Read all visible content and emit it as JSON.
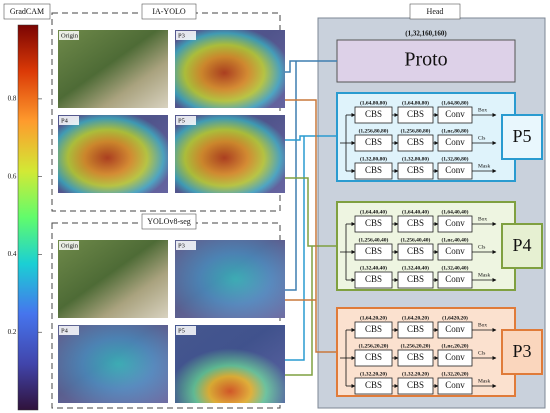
{
  "colorbar": {
    "title": "GradCAM",
    "lim": [
      0,
      0.99
    ],
    "ticks": [
      0.2,
      0.4,
      0.6,
      0.8
    ]
  },
  "panels": [
    {
      "title": "IA-YOLO",
      "images": [
        "Origin",
        "P3",
        "P4",
        "P5"
      ]
    },
    {
      "title": "YOLOv8-seg",
      "images": [
        "Origin",
        "P3",
        "P4",
        "P5"
      ]
    }
  ],
  "head": {
    "title": "Head",
    "proto": {
      "shape": "(1,32,160,160)",
      "label": "Proto"
    },
    "groups": [
      {
        "label": "P5",
        "rows": [
          {
            "shapes": [
              "(1,64,80,80)",
              "(1,64,80,80)",
              "(1,64,80,80)"
            ],
            "blocks": [
              "CBS",
              "CBS",
              "Conv"
            ],
            "output": "Box"
          },
          {
            "shapes": [
              "(1,256,80,80)",
              "(1,256,80,80)",
              "(1,nc,80,80)"
            ],
            "blocks": [
              "CBS",
              "CBS",
              "Conv"
            ],
            "output": "Cls"
          },
          {
            "shapes": [
              "(1,32,80,80)",
              "(1,32,80,80)",
              "(1,32,80,80)"
            ],
            "blocks": [
              "CBS",
              "CBS",
              "Conv"
            ],
            "output": "Mask"
          }
        ]
      },
      {
        "label": "P4",
        "rows": [
          {
            "shapes": [
              "(1,64,40,40)",
              "(1,64,40,40)",
              "(1,64,40,40)"
            ],
            "blocks": [
              "CBS",
              "CBS",
              "Conv"
            ],
            "output": "Box"
          },
          {
            "shapes": [
              "(1,256,40,40)",
              "(1,256,40,40)",
              "(1,nc,40,40)"
            ],
            "blocks": [
              "CBS",
              "CBS",
              "Conv"
            ],
            "output": "Cls"
          },
          {
            "shapes": [
              "(1,32,40,40)",
              "(1,32,40,40)",
              "(1,32,40,40)"
            ],
            "blocks": [
              "CBS",
              "CBS",
              "Conv"
            ],
            "output": "Mask"
          }
        ]
      },
      {
        "label": "P3",
        "rows": [
          {
            "shapes": [
              "(1,64,20,20)",
              "(1,64,20,20)",
              "(1,6420,20)"
            ],
            "blocks": [
              "CBS",
              "CBS",
              "Conv"
            ],
            "output": "Box"
          },
          {
            "shapes": [
              "(1,256,20,20)",
              "(1,256,20,20)",
              "(1,nc,20,20)"
            ],
            "blocks": [
              "CBS",
              "CBS",
              "Conv"
            ],
            "output": "Cls"
          },
          {
            "shapes": [
              "(1,32,20,20)",
              "(1,32,20,20)",
              "(1,32,20,20)"
            ],
            "blocks": [
              "CBS",
              "CBS",
              "Conv"
            ],
            "output": "Mask"
          }
        ]
      }
    ]
  }
}
